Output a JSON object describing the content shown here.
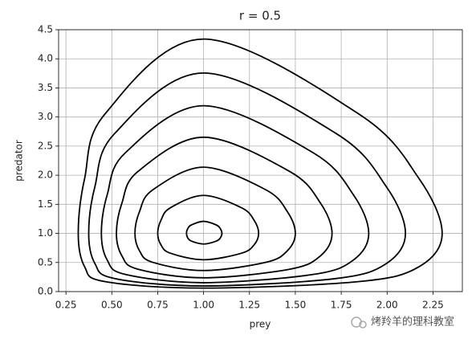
{
  "chart_data": {
    "type": "line",
    "title": "r = 0.5",
    "x_label": "prey",
    "y_label": "predator",
    "watermark": "烤羚羊的理科教室",
    "color": "#000000",
    "grid": true,
    "xlim": [
      0.21,
      2.41
    ],
    "ylim": [
      0,
      4.5
    ],
    "xticks": [
      0.25,
      {
        "value": 0.5,
        "label": "0.50"
      },
      0.75,
      {
        "value": 1,
        "label": "1.00"
      },
      1.25,
      {
        "value": 1.5,
        "label": "1.50"
      },
      1.75,
      {
        "value": 2,
        "label": "2.00"
      },
      2.25
    ],
    "yticks": [
      {
        "value": 0,
        "label": "0.0"
      },
      0.5,
      {
        "value": 1,
        "label": "1.0"
      },
      1.5,
      {
        "value": 2,
        "label": "2.0"
      },
      2.5,
      {
        "value": 3,
        "label": "3.0"
      },
      3.5,
      {
        "value": 4,
        "label": "4.0"
      },
      4.5
    ],
    "series": [
      {
        "x": [
          1.1,
          1.092,
          1.07,
          1,
          0.933,
          0.913,
          0.907,
          0.913,
          0.933,
          1,
          1.07,
          1.092
        ],
        "values": [
          1,
          1.077,
          1.144,
          1.207,
          1.144,
          1.077,
          1,
          0.927,
          0.869,
          0.818,
          0.869,
          0.927
        ]
      },
      {
        "x": [
          1.3,
          1.275,
          1.207,
          1,
          0.819,
          0.768,
          0.75,
          0.768,
          0.819,
          1,
          1.207,
          1.275
        ],
        "values": [
          1,
          1.227,
          1.44,
          1.653,
          1.44,
          1.227,
          1,
          0.802,
          0.66,
          0.547,
          0.66,
          0.802
        ]
      },
      {
        "x": [
          1.5,
          1.456,
          1.34,
          1,
          0.723,
          0.651,
          0.626,
          0.651,
          0.723,
          1,
          1.34,
          1.456
        ],
        "values": [
          1,
          1.376,
          1.748,
          2.138,
          1.748,
          1.376,
          1,
          0.7,
          0.503,
          0.362,
          0.503,
          0.7
        ]
      },
      {
        "x": [
          1.7,
          1.637,
          1.47,
          1,
          0.642,
          0.555,
          0.525,
          0.555,
          0.642,
          1,
          1.47,
          1.637
        ],
        "values": [
          1,
          1.52,
          2.063,
          2.653,
          2.063,
          1.52,
          1,
          0.614,
          0.385,
          0.237,
          0.385,
          0.614
        ]
      },
      {
        "x": [
          1.9,
          1.816,
          1.597,
          1,
          0.574,
          0.475,
          0.443,
          0.475,
          0.574,
          1,
          1.597,
          1.816
        ],
        "values": [
          1,
          1.665,
          2.386,
          3.194,
          2.386,
          1.665,
          1,
          0.541,
          0.295,
          0.153,
          0.295,
          0.541
        ]
      },
      {
        "x": [
          2.1,
          1.995,
          1.723,
          1,
          0.515,
          0.408,
          0.374,
          0.408,
          0.515,
          1,
          1.723,
          1.995
        ],
        "values": [
          1,
          1.806,
          2.715,
          3.756,
          2.715,
          1.806,
          1,
          0.48,
          0.225,
          0.097,
          0.225,
          0.48
        ]
      },
      {
        "x": [
          2.3,
          2.173,
          1.847,
          1,
          0.462,
          0.352,
          0.317,
          0.352,
          0.462,
          1,
          1.847,
          2.173
        ],
        "values": [
          1,
          1.946,
          3.049,
          4.34,
          3.049,
          1.946,
          1,
          0.425,
          0.172,
          0.06,
          0.172,
          0.425
        ]
      }
    ]
  }
}
